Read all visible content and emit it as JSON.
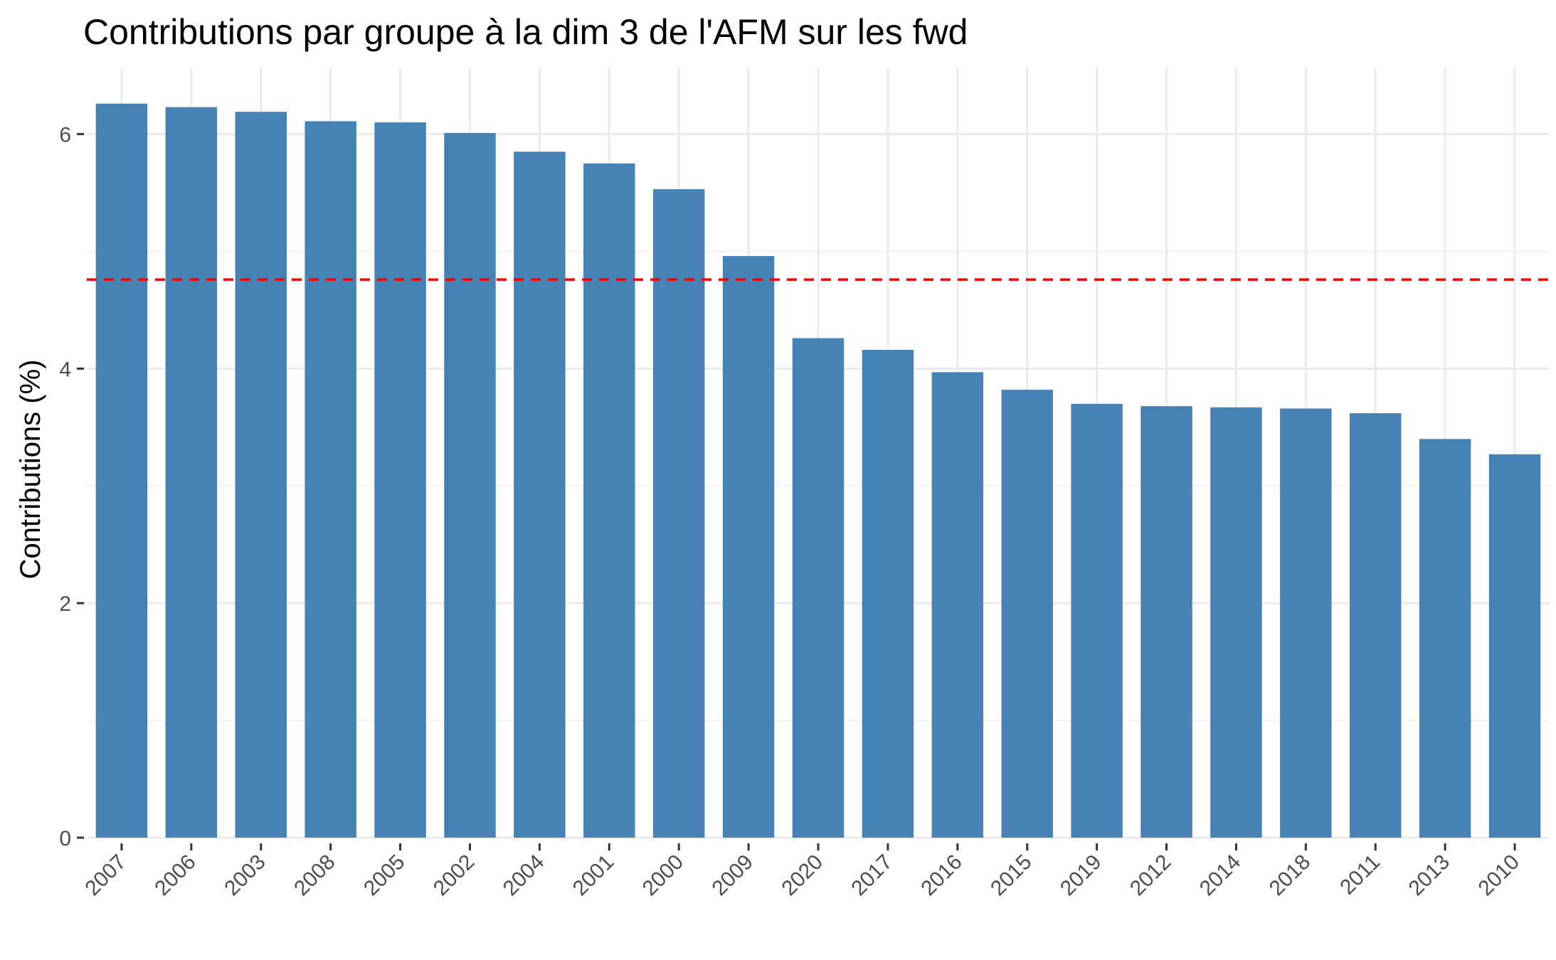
{
  "chart_data": {
    "type": "bar",
    "title": "Contributions par groupe à la dim 3 de l'AFM sur les fwd",
    "xlabel": "",
    "ylabel": "Contributions (%)",
    "categories": [
      "2007",
      "2006",
      "2003",
      "2008",
      "2005",
      "2002",
      "2004",
      "2001",
      "2000",
      "2009",
      "2020",
      "2017",
      "2016",
      "2015",
      "2019",
      "2012",
      "2014",
      "2018",
      "2011",
      "2013",
      "2010"
    ],
    "values": [
      6.26,
      6.23,
      6.19,
      6.11,
      6.1,
      6.01,
      5.85,
      5.75,
      5.53,
      4.96,
      4.26,
      4.16,
      3.97,
      3.82,
      3.7,
      3.68,
      3.67,
      3.66,
      3.62,
      3.4,
      3.27
    ],
    "ylim": [
      0,
      6.5
    ],
    "yticks": [
      0,
      2,
      4,
      6
    ],
    "reference_line": {
      "value": 4.76,
      "style": "dashed"
    },
    "grid": true,
    "bar_color": "#4682B4",
    "reference_line_color": "#FF0000"
  }
}
